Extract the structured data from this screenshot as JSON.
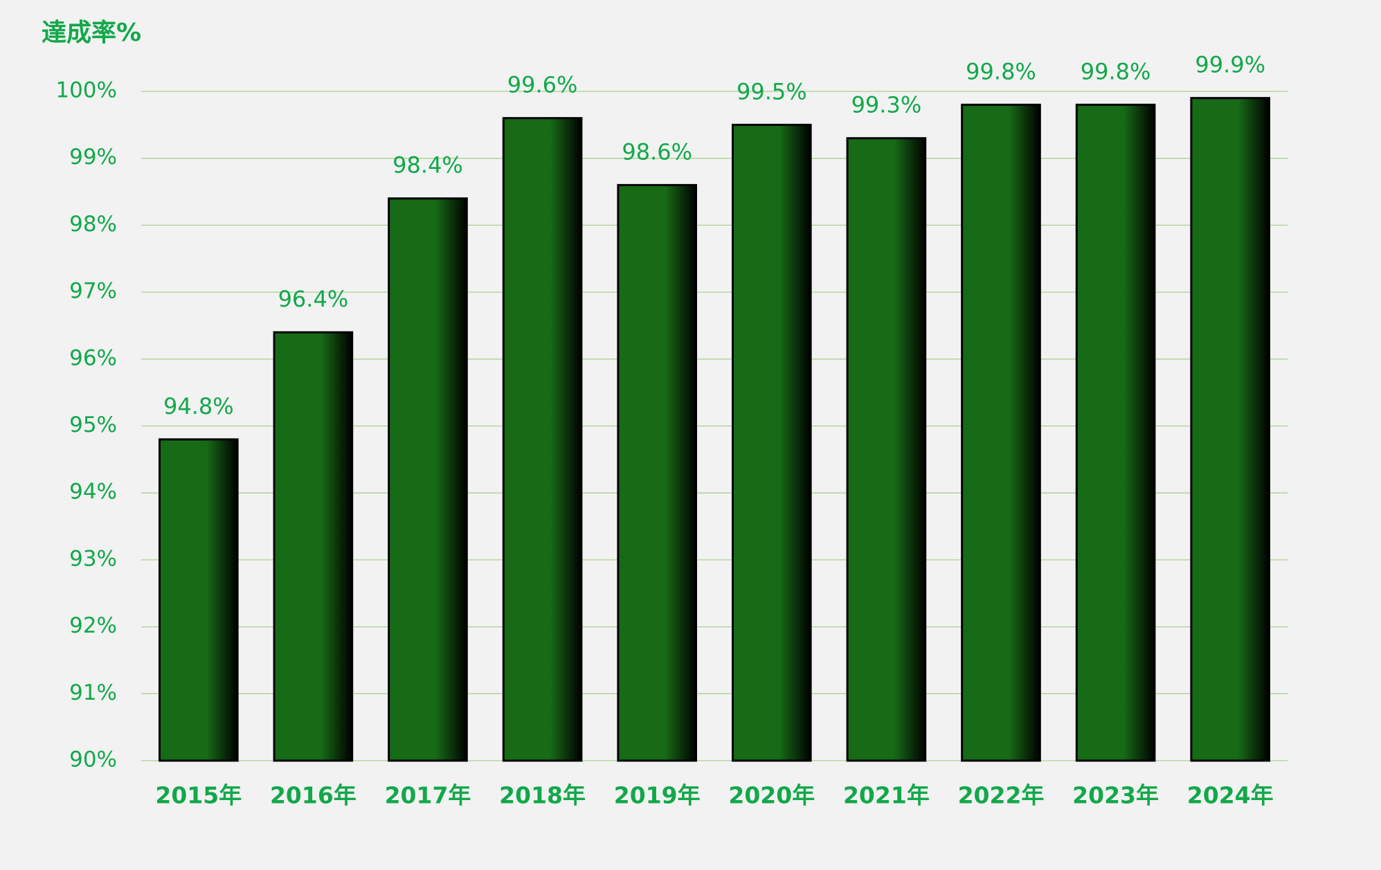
{
  "chart_data": {
    "type": "bar",
    "y_label": "達成率%",
    "categories": [
      "2015年",
      "2016年",
      "2017年",
      "2018年",
      "2019年",
      "2020年",
      "2021年",
      "2022年",
      "2023年",
      "2024年"
    ],
    "values": [
      94.8,
      96.4,
      98.4,
      99.6,
      98.6,
      99.5,
      99.3,
      99.8,
      99.8,
      99.9
    ],
    "value_labels": [
      "94.8%",
      "96.4%",
      "98.4%",
      "99.6%",
      "98.6%",
      "99.5%",
      "99.3%",
      "99.8%",
      "99.8%",
      "99.9%"
    ],
    "color": "#176b17",
    "ylim": [
      90,
      100
    ],
    "yticks": [
      {
        "value": 90,
        "label": "90%"
      },
      {
        "value": 91,
        "label": "91%"
      },
      {
        "value": 92,
        "label": "92%"
      },
      {
        "value": 93,
        "label": "93%"
      },
      {
        "value": 94,
        "label": "94%"
      },
      {
        "value": 95,
        "label": "95%"
      },
      {
        "value": 96,
        "label": "96%"
      },
      {
        "value": 97,
        "label": "97%"
      },
      {
        "value": 98,
        "label": "98%"
      },
      {
        "value": 99,
        "label": "99%"
      },
      {
        "value": 100,
        "label": "100%"
      }
    ],
    "grid": true
  }
}
